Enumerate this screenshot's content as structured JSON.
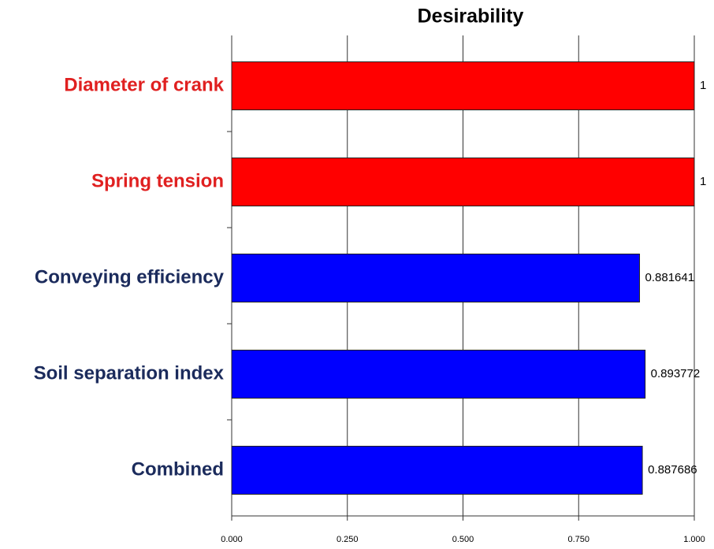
{
  "chart_data": {
    "type": "bar",
    "orientation": "horizontal",
    "title": "Desirability",
    "categories": [
      "Diameter of crank",
      "Spring tension",
      "Conveying efficiency",
      "Soil separation index",
      "Combined"
    ],
    "values": [
      1,
      1,
      0.881641,
      0.893772,
      0.887686
    ],
    "colors": [
      "#ff0000",
      "#ff0000",
      "#0000ff",
      "#0000ff",
      "#0000ff"
    ],
    "label_colors": [
      "#e02020",
      "#e02020",
      "#1b2b5c",
      "#1b2b5c",
      "#1b2b5c"
    ],
    "xlim": [
      0,
      1
    ],
    "xticks": [
      {
        "value": 0,
        "label": "0.000"
      },
      {
        "value": 0.25,
        "label": "0.250"
      },
      {
        "value": 0.5,
        "label": "0.500"
      },
      {
        "value": 0.75,
        "label": "0.750"
      },
      {
        "value": 1,
        "label": "1.000"
      }
    ],
    "grid": true
  }
}
